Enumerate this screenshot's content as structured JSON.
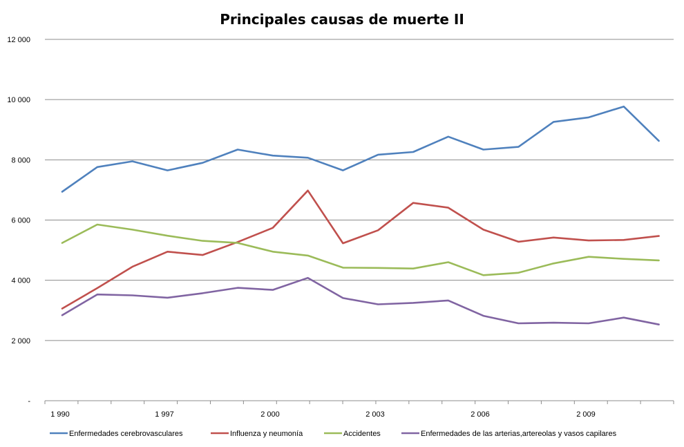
{
  "chart_data": {
    "type": "line",
    "title": "Principales causas de muerte II",
    "y_range": [
      0,
      12000
    ],
    "y_ticks": [
      {
        "value": 0,
        "label": "-"
      },
      {
        "value": 2000,
        "label": "2 000"
      },
      {
        "value": 4000,
        "label": "4 000"
      },
      {
        "value": 6000,
        "label": "6 000"
      },
      {
        "value": 8000,
        "label": "8 000"
      },
      {
        "value": 10000,
        "label": "10 000"
      },
      {
        "value": 12000,
        "label": "12 000"
      }
    ],
    "x_tick_labels": [
      "1 990",
      "1 997",
      "2 000",
      "2 003",
      "2 006",
      "2 009"
    ],
    "legend_position": "bottom",
    "grid": true,
    "series": [
      {
        "name": "Enfermedades cerebrovasculares",
        "color": "#4F81BD",
        "values": [
          6940,
          7760,
          7950,
          7650,
          7900,
          8340,
          8140,
          8070,
          7650,
          8170,
          8260,
          8770,
          8340,
          8430,
          9260,
          9410,
          9770,
          8630
        ]
      },
      {
        "name": "Influenza y neumonía",
        "color": "#C0504D",
        "values": [
          3060,
          3740,
          4450,
          4950,
          4840,
          5270,
          5740,
          6980,
          5230,
          5660,
          6570,
          6410,
          5680,
          5280,
          5420,
          5320,
          5340,
          5470
        ]
      },
      {
        "name": "Accidentes",
        "color": "#9BBB59",
        "values": [
          5240,
          5850,
          5680,
          5480,
          5310,
          5240,
          4950,
          4820,
          4420,
          4410,
          4390,
          4600,
          4170,
          4250,
          4560,
          4780,
          4710,
          4660
        ]
      },
      {
        "name": "Enfermedades de las arterias,artereolas y vasos capilares",
        "color": "#8064A2",
        "values": [
          2840,
          3530,
          3500,
          3420,
          3570,
          3750,
          3680,
          4080,
          3410,
          3200,
          3250,
          3330,
          2820,
          2570,
          2590,
          2570,
          2760,
          2530
        ]
      }
    ]
  },
  "colors": {
    "gridline": "#8C8C8C",
    "axis": "#8C8C8C"
  }
}
